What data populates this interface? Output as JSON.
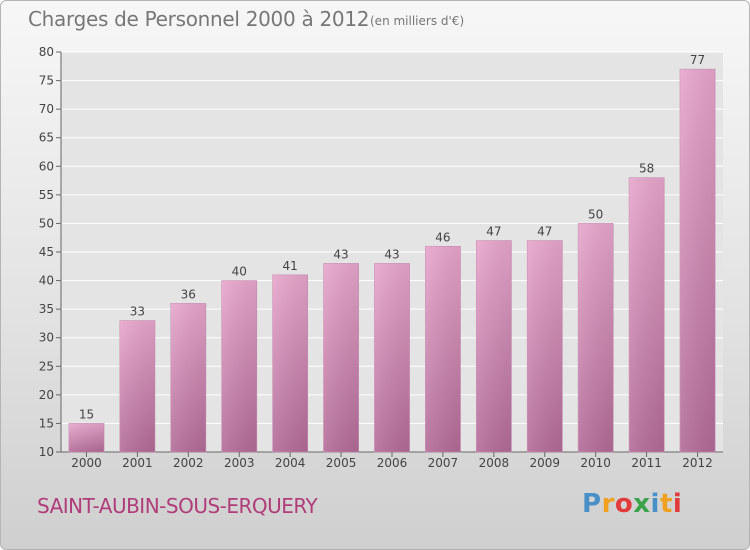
{
  "title": "Charges de Personnel 2000 à 2012",
  "subtitle": "(en milliers d'€)",
  "commune": "SAINT-AUBIN-SOUS-ERQUERY",
  "brand": {
    "text": "Proxiti",
    "letter_colors": [
      "#4a90c8",
      "#f0a020",
      "#e23b3b",
      "#3aa34a",
      "#4a90c8",
      "#f0a020",
      "#e23b3b"
    ]
  },
  "colors": {
    "bar_top": "#e7a6cc",
    "bar_bottom": "#b26b97",
    "grid": "#ffffff",
    "plot_bg": "#e4e4e4"
  },
  "chart_data": {
    "type": "bar",
    "title": "Charges de Personnel 2000 à 2012",
    "subtitle": "(en milliers d'€)",
    "categories": [
      "2000",
      "2001",
      "2002",
      "2003",
      "2004",
      "2005",
      "2006",
      "2007",
      "2008",
      "2009",
      "2010",
      "2011",
      "2012"
    ],
    "values": [
      15,
      33,
      36,
      40,
      41,
      43,
      43,
      46,
      47,
      47,
      50,
      58,
      77
    ],
    "ylim": [
      10,
      80
    ],
    "yticks": [
      10,
      15,
      20,
      25,
      30,
      35,
      40,
      45,
      50,
      55,
      60,
      65,
      70,
      75,
      80
    ],
    "grid": true,
    "data_labels": true
  }
}
